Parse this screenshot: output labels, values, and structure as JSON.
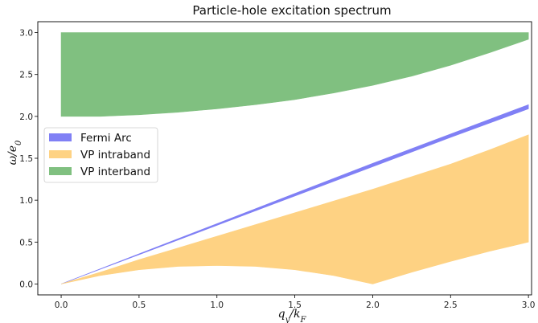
{
  "chart_data": {
    "type": "area",
    "title": "Particle-hole excitation spectrum",
    "xlabel": "q_y/k_F",
    "ylabel": "ω/e_0",
    "xlim": [
      -0.15,
      3.02
    ],
    "ylim": [
      -0.13,
      3.13
    ],
    "xticks": [
      0.0,
      0.5,
      1.0,
      1.5,
      2.0,
      2.5,
      3.0
    ],
    "xtick_labels": [
      "0.0",
      "0.5",
      "1.0",
      "1.5",
      "2.0",
      "2.5",
      "3.0"
    ],
    "yticks": [
      0.0,
      0.5,
      1.0,
      1.5,
      2.0,
      2.5,
      3.0
    ],
    "ytick_labels": [
      "0.0",
      "0.5",
      "1.0",
      "1.5",
      "2.0",
      "2.5",
      "3.0"
    ],
    "grid": false,
    "legend_position": "center-left",
    "series": [
      {
        "name": "Fermi Arc",
        "color": "#8080f5",
        "x": [
          0.0,
          0.5,
          1.0,
          1.5,
          2.0,
          2.5,
          3.0
        ],
        "lower": [
          0.0,
          0.35,
          0.7,
          1.05,
          1.4,
          1.75,
          2.09
        ],
        "upper": [
          0.0,
          0.36,
          0.72,
          1.08,
          1.44,
          1.79,
          2.14
        ]
      },
      {
        "name": "VP intraband",
        "color": "#fed283",
        "x": [
          0.0,
          0.25,
          0.5,
          0.75,
          1.0,
          1.25,
          1.5,
          1.75,
          2.0,
          2.25,
          2.5,
          2.75,
          3.0
        ],
        "lower": [
          0.0,
          0.1,
          0.17,
          0.21,
          0.22,
          0.21,
          0.17,
          0.1,
          0.0,
          0.14,
          0.27,
          0.39,
          0.5
        ],
        "upper": [
          0.0,
          0.14,
          0.29,
          0.43,
          0.57,
          0.71,
          0.85,
          0.99,
          1.13,
          1.28,
          1.43,
          1.6,
          1.78
        ]
      },
      {
        "name": "VP interband",
        "color": "#80c080",
        "x": [
          0.0,
          0.25,
          0.5,
          0.75,
          1.0,
          1.25,
          1.5,
          1.75,
          2.0,
          2.25,
          2.5,
          2.75,
          3.0
        ],
        "lower": [
          2.0,
          2.0,
          2.02,
          2.05,
          2.09,
          2.14,
          2.2,
          2.28,
          2.37,
          2.48,
          2.61,
          2.76,
          2.92
        ],
        "upper": [
          3.0,
          3.0,
          3.0,
          3.0,
          3.0,
          3.0,
          3.0,
          3.0,
          3.0,
          3.0,
          3.0,
          3.0,
          3.0
        ]
      }
    ]
  }
}
